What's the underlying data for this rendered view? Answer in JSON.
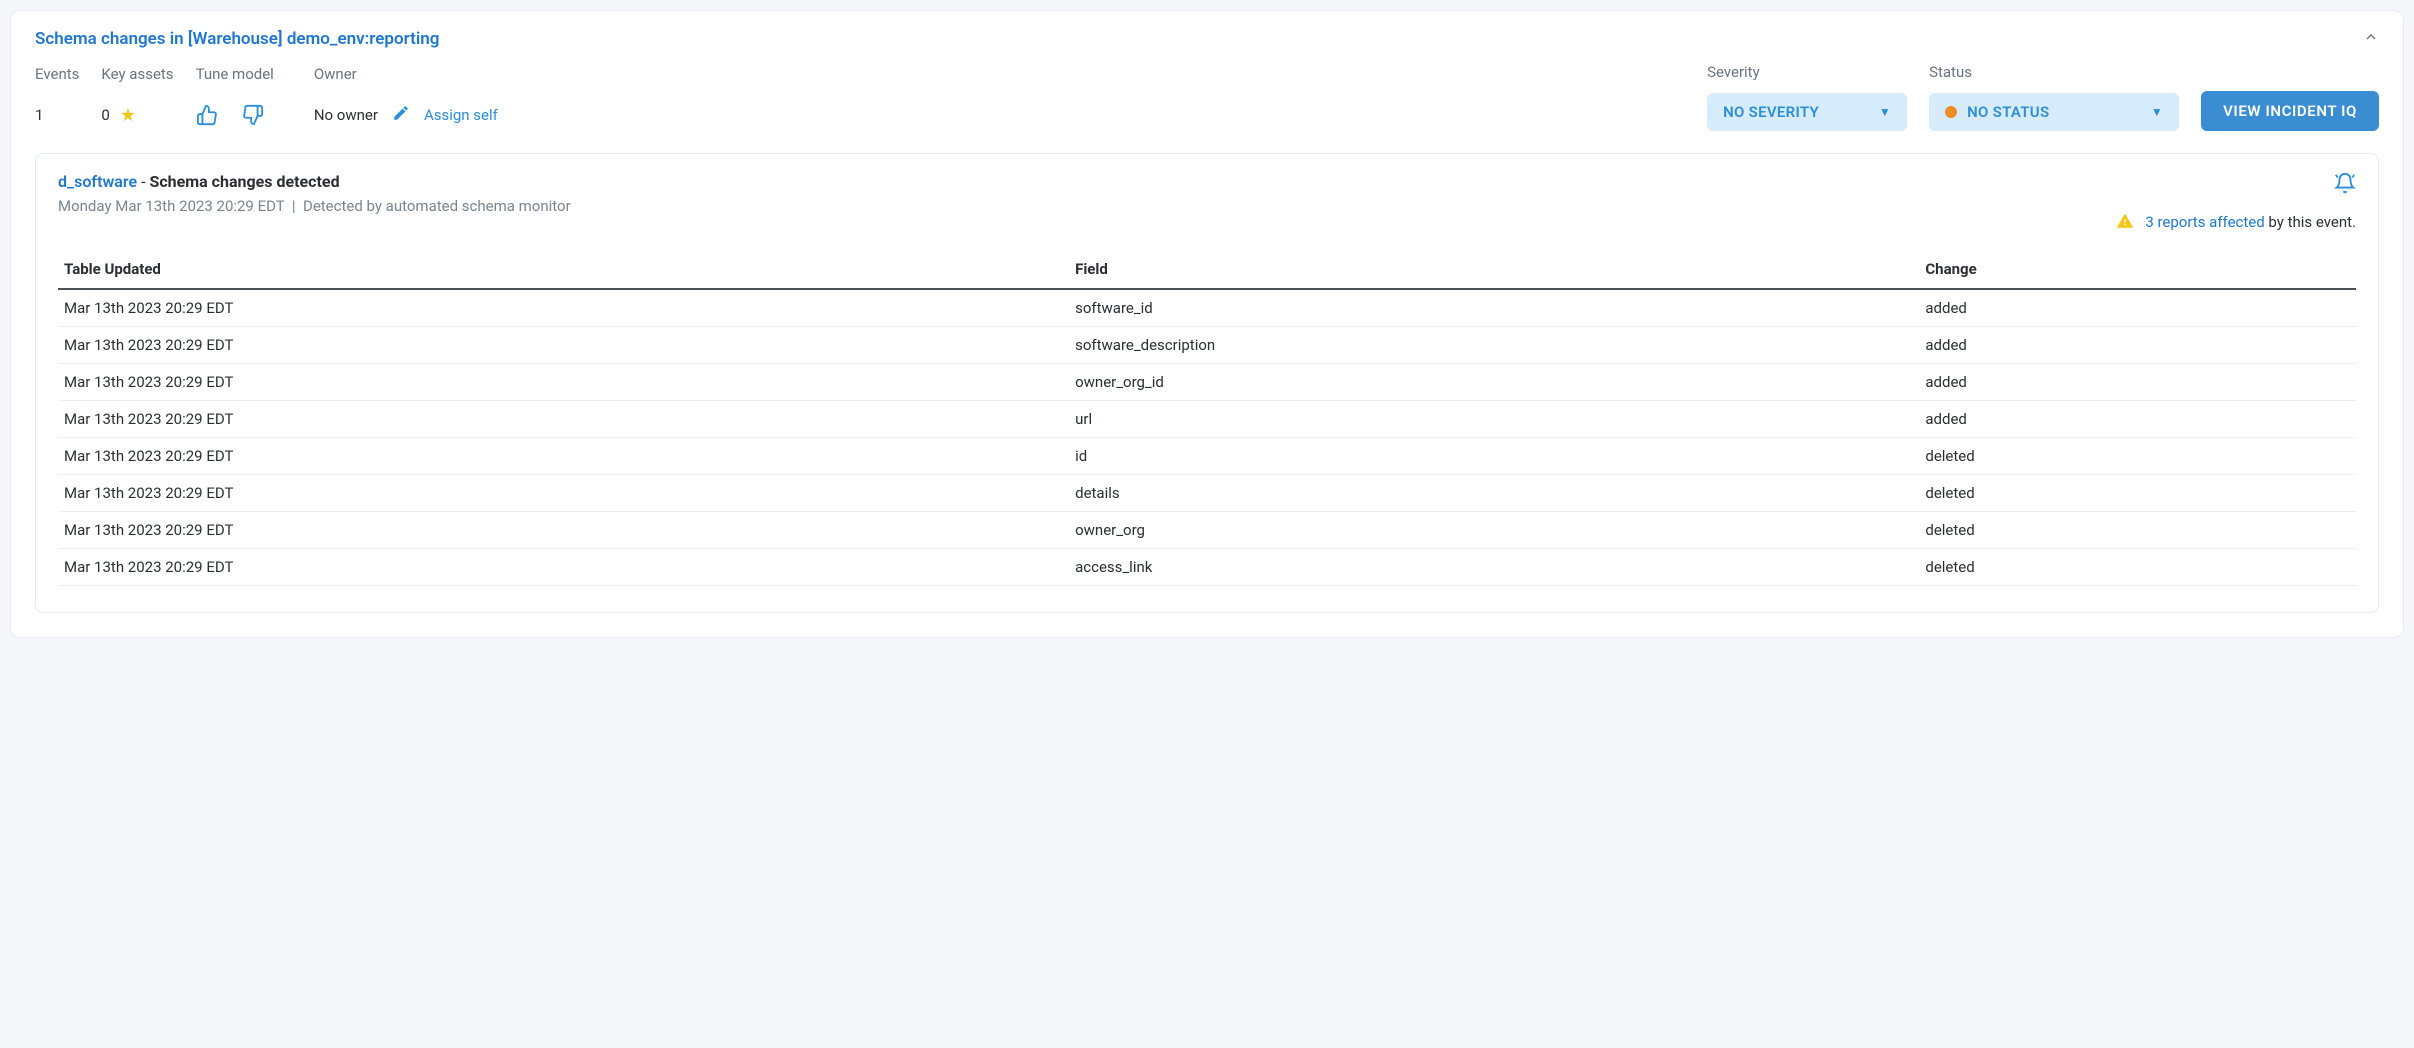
{
  "header": {
    "title": "Schema changes in [Warehouse] demo_env:reporting"
  },
  "meta": {
    "events_label": "Events",
    "events_value": "1",
    "key_assets_label": "Key assets",
    "key_assets_value": "0",
    "tune_label": "Tune model",
    "owner_label": "Owner",
    "no_owner": "No owner",
    "assign_self": "Assign self",
    "severity_label": "Severity",
    "severity_value": "NO SEVERITY",
    "status_label": "Status",
    "status_value": "NO STATUS",
    "status_dot_color": "#f08c28",
    "view_btn": "VIEW INCIDENT IQ"
  },
  "event": {
    "link": "d_software",
    "sep": " - ",
    "title": "Schema changes detected",
    "timestamp": "Monday Mar 13th 2023 20:29 EDT",
    "detected_by": "Detected by automated schema monitor",
    "reports_link": "3 reports affected",
    "reports_suffix": " by this event."
  },
  "table": {
    "columns": [
      "Table Updated",
      "Field",
      "Change"
    ],
    "rows": [
      [
        "Mar 13th 2023 20:29 EDT",
        "software_id",
        "added"
      ],
      [
        "Mar 13th 2023 20:29 EDT",
        "software_description",
        "added"
      ],
      [
        "Mar 13th 2023 20:29 EDT",
        "owner_org_id",
        "added"
      ],
      [
        "Mar 13th 2023 20:29 EDT",
        "url",
        "added"
      ],
      [
        "Mar 13th 2023 20:29 EDT",
        "id",
        "deleted"
      ],
      [
        "Mar 13th 2023 20:29 EDT",
        "details",
        "deleted"
      ],
      [
        "Mar 13th 2023 20:29 EDT",
        "owner_org",
        "deleted"
      ],
      [
        "Mar 13th 2023 20:29 EDT",
        "access_link",
        "deleted"
      ]
    ]
  },
  "colors": {
    "link": "#1f77d0",
    "accent": "#2b8ed8",
    "dropdown_bg": "#d7ecfa",
    "primary_btn": "#3a8dd0",
    "star": "#f5c518"
  }
}
